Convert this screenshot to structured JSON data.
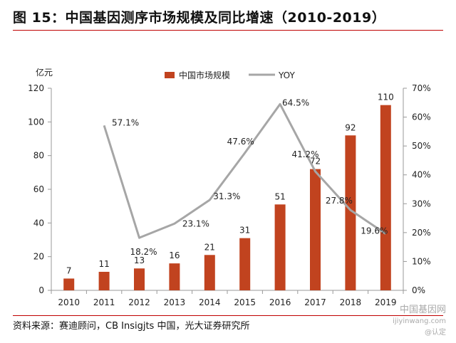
{
  "figure": {
    "title": "图 15：中国基因测序市场规模及同比增速（2010-2019）",
    "source": "资料来源：赛迪顾问，CB Insigjts 中国，光大证券研究所",
    "watermark": {
      "line1": "中国基因网",
      "line2": "ijiyinwang.com",
      "line3": "@认定"
    }
  },
  "chart_data": {
    "type": "bar",
    "categories": [
      "2010",
      "2011",
      "2012",
      "2013",
      "2014",
      "2015",
      "2016",
      "2017",
      "2018",
      "2019"
    ],
    "series": [
      {
        "name": "中国市场规模",
        "type": "bar",
        "axis": "left",
        "values": [
          7,
          11,
          13,
          16,
          21,
          31,
          51,
          72,
          92,
          110
        ],
        "labels": [
          "7",
          "11",
          "13",
          "16",
          "21",
          "31",
          "51",
          "72",
          "92",
          "110"
        ],
        "color": "#c1431f"
      },
      {
        "name": "YOY",
        "type": "line",
        "axis": "right",
        "values": [
          null,
          57.1,
          18.2,
          23.1,
          31.3,
          47.6,
          64.5,
          41.2,
          27.8,
          19.6
        ],
        "labels": [
          null,
          "57.1%",
          "18.2%",
          "23.1%",
          "31.3%",
          "47.6%",
          "64.5%",
          "41.2%",
          "27.8%",
          "19.6%"
        ],
        "color": "#a6a6a6"
      }
    ],
    "ylabel": "亿元",
    "ylim": [
      0,
      120
    ],
    "yticks": [
      "0",
      "20",
      "40",
      "60",
      "80",
      "100",
      "120"
    ],
    "y2lim": [
      0,
      70
    ],
    "y2ticks": [
      "0%",
      "10%",
      "20%",
      "30%",
      "40%",
      "50%",
      "60%",
      "70%"
    ],
    "grid": false,
    "legend": "top"
  }
}
